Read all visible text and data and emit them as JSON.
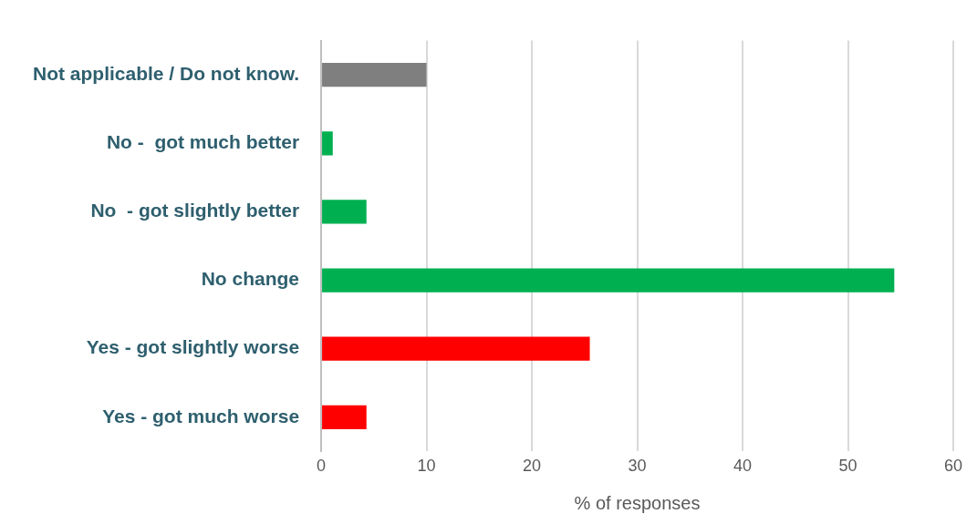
{
  "chart_data": {
    "type": "bar",
    "orientation": "horizontal",
    "xlabel": "% of responses",
    "categories": [
      "Not applicable / Do not know.",
      "No -  got much better",
      "No  - got slightly better",
      "No change",
      "Yes - got slightly worse",
      "Yes - got much worse"
    ],
    "values": [
      10,
      1.1,
      4.3,
      54.4,
      25.5,
      4.3
    ],
    "colors": [
      "#7f7f7f",
      "#00b050",
      "#00b050",
      "#00b050",
      "#ff0000",
      "#ff0000"
    ],
    "xlim": [
      0,
      60
    ],
    "xticks": [
      0,
      10,
      20,
      30,
      40,
      50,
      60
    ],
    "grid": "x",
    "legend": false
  }
}
